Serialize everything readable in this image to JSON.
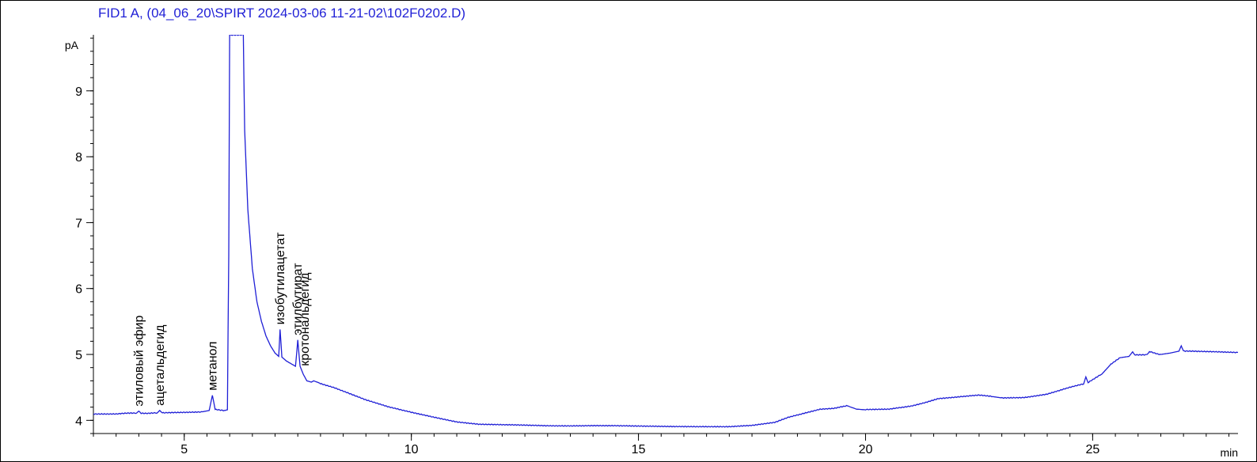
{
  "chart_data": {
    "type": "line",
    "title": "FID1 A,  (04_06_20\\SPIRT 2024-03-06 11-21-02\\102F0202.D)",
    "xlabel": "min",
    "ylabel": "pA",
    "xlim": [
      3,
      28.2
    ],
    "ylim": [
      3.8,
      9.85
    ],
    "x_ticks": [
      5,
      10,
      15,
      20,
      25
    ],
    "y_ticks": [
      4,
      5,
      6,
      7,
      8,
      9
    ],
    "x_minor_step": 0.5,
    "y_minor_step": 0.2,
    "grid": false,
    "line_color": "#1f1fd6",
    "series": [
      {
        "values_xy": [
          [
            3.0,
            4.1
          ],
          [
            3.5,
            4.1
          ],
          [
            3.95,
            4.11
          ],
          [
            4.0,
            4.14
          ],
          [
            4.05,
            4.11
          ],
          [
            4.4,
            4.11
          ],
          [
            4.46,
            4.15
          ],
          [
            4.52,
            4.11
          ],
          [
            5.0,
            4.12
          ],
          [
            5.4,
            4.13
          ],
          [
            5.55,
            4.15
          ],
          [
            5.62,
            4.38
          ],
          [
            5.68,
            4.17
          ],
          [
            5.9,
            4.15
          ],
          [
            5.95,
            4.16
          ],
          [
            5.98,
            6.5
          ],
          [
            6.0,
            9.85
          ],
          [
            6.3,
            9.85
          ],
          [
            6.33,
            8.4
          ],
          [
            6.4,
            7.2
          ],
          [
            6.5,
            6.3
          ],
          [
            6.6,
            5.8
          ],
          [
            6.7,
            5.5
          ],
          [
            6.8,
            5.28
          ],
          [
            6.9,
            5.13
          ],
          [
            7.0,
            5.02
          ],
          [
            7.08,
            4.97
          ],
          [
            7.11,
            5.38
          ],
          [
            7.15,
            4.96
          ],
          [
            7.25,
            4.9
          ],
          [
            7.35,
            4.86
          ],
          [
            7.45,
            4.82
          ],
          [
            7.5,
            5.22
          ],
          [
            7.55,
            4.82
          ],
          [
            7.62,
            4.7
          ],
          [
            7.7,
            4.6
          ],
          [
            7.8,
            4.58
          ],
          [
            7.85,
            4.6
          ],
          [
            8.0,
            4.56
          ],
          [
            8.3,
            4.5
          ],
          [
            8.6,
            4.42
          ],
          [
            9.0,
            4.31
          ],
          [
            9.5,
            4.2
          ],
          [
            10.0,
            4.12
          ],
          [
            10.5,
            4.05
          ],
          [
            11.0,
            3.98
          ],
          [
            11.5,
            3.94
          ],
          [
            12.0,
            3.93
          ],
          [
            13.0,
            3.92
          ],
          [
            14.0,
            3.92
          ],
          [
            15.0,
            3.91
          ],
          [
            16.0,
            3.91
          ],
          [
            17.0,
            3.9
          ],
          [
            17.5,
            3.92
          ],
          [
            18.0,
            3.97
          ],
          [
            18.3,
            4.05
          ],
          [
            18.7,
            4.12
          ],
          [
            19.0,
            4.17
          ],
          [
            19.3,
            4.18
          ],
          [
            19.6,
            4.22
          ],
          [
            19.8,
            4.17
          ],
          [
            20.0,
            4.16
          ],
          [
            20.5,
            4.17
          ],
          [
            21.0,
            4.22
          ],
          [
            21.3,
            4.27
          ],
          [
            21.6,
            4.33
          ],
          [
            22.0,
            4.35
          ],
          [
            22.5,
            4.38
          ],
          [
            22.8,
            4.36
          ],
          [
            23.0,
            4.34
          ],
          [
            23.5,
            4.35
          ],
          [
            24.0,
            4.4
          ],
          [
            24.5,
            4.5
          ],
          [
            24.8,
            4.55
          ],
          [
            24.85,
            4.66
          ],
          [
            24.9,
            4.57
          ],
          [
            25.2,
            4.7
          ],
          [
            25.4,
            4.85
          ],
          [
            25.6,
            4.95
          ],
          [
            25.8,
            4.97
          ],
          [
            25.88,
            5.04
          ],
          [
            25.93,
            4.99
          ],
          [
            26.2,
            5.0
          ],
          [
            26.25,
            5.04
          ],
          [
            26.5,
            5.0
          ],
          [
            26.7,
            5.02
          ],
          [
            26.9,
            5.05
          ],
          [
            26.95,
            5.13
          ],
          [
            27.0,
            5.05
          ],
          [
            27.5,
            5.04
          ],
          [
            28.2,
            5.03
          ]
        ]
      }
    ],
    "annotations": [
      {
        "text": "этиловый эфир",
        "x": 4.0
      },
      {
        "text": "ацетальдегид",
        "x": 4.46
      },
      {
        "text": "метанол",
        "x": 5.62
      },
      {
        "text": "изобутилацетат",
        "x": 7.11
      },
      {
        "text": "этилбутират",
        "x": 7.5
      },
      {
        "text": "кротональдегид",
        "x": 7.65
      }
    ]
  }
}
